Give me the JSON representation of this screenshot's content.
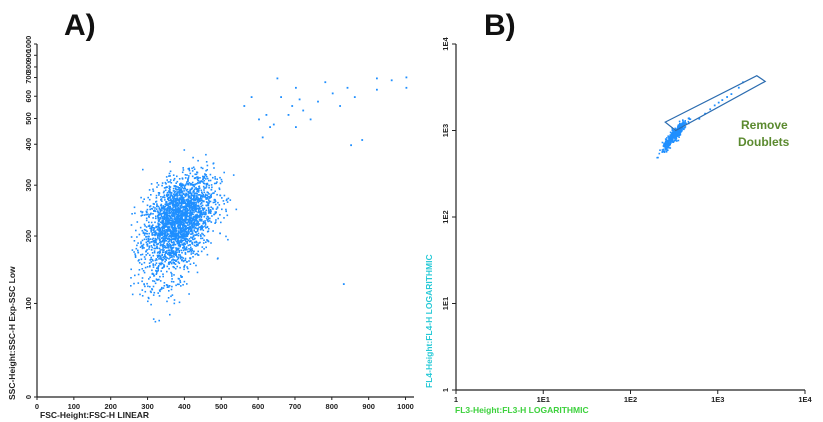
{
  "chart_data": [
    {
      "type": "scatter",
      "panel_label": "A)",
      "xlabel": "FSC-Height:FSC-H LINEAR",
      "ylabel": "SSC-Height:SSC-H Exp-SSC Low",
      "x_scale": "linear",
      "y_scale": "nonlinear",
      "xlim": [
        0,
        1023
      ],
      "ylim": [
        0,
        1023
      ],
      "x_ticks": [
        {
          "value": 0,
          "label": "0"
        },
        {
          "value": 100,
          "label": "100"
        },
        {
          "value": 200,
          "label": "200"
        },
        {
          "value": 300,
          "label": "300"
        },
        {
          "value": 400,
          "label": "400"
        },
        {
          "value": 500,
          "label": "500"
        },
        {
          "value": 600,
          "label": "600"
        },
        {
          "value": 700,
          "label": "700"
        },
        {
          "value": 800,
          "label": "800"
        },
        {
          "value": 900,
          "label": "900"
        },
        {
          "value": 1000,
          "label": "1000"
        }
      ],
      "y_ticks": [
        {
          "label": "0",
          "frac": 0.0
        },
        {
          "label": "100",
          "frac": 0.265
        },
        {
          "label": "200",
          "frac": 0.456
        },
        {
          "label": "300",
          "frac": 0.6
        },
        {
          "label": "400",
          "frac": 0.716
        },
        {
          "label": "500",
          "frac": 0.789
        },
        {
          "label": "600",
          "frac": 0.852
        },
        {
          "label": "700",
          "frac": 0.905
        },
        {
          "label": "800",
          "frac": 0.935
        },
        {
          "label": "900",
          "frac": 0.968
        },
        {
          "label": "1000",
          "frac": 1.0
        }
      ],
      "series": [
        {
          "color": "#1f8fff",
          "population": {
            "center_x": 380,
            "center_y": 230,
            "n_points": 2600
          },
          "points": [
            [
              600,
              500
            ],
            [
              620,
              520
            ],
            [
              650,
              700
            ],
            [
              660,
              600
            ],
            [
              690,
              560
            ],
            [
              700,
              650
            ],
            [
              720,
              540
            ],
            [
              760,
              580
            ],
            [
              780,
              680
            ],
            [
              800,
              620
            ],
            [
              820,
              560
            ],
            [
              840,
              650
            ],
            [
              860,
              600
            ],
            [
              880,
              420
            ],
            [
              920,
              700
            ],
            [
              960,
              690
            ],
            [
              1000,
              710
            ],
            [
              1000,
              650
            ],
            [
              640,
              480
            ],
            [
              700,
              470
            ],
            [
              740,
              500
            ],
            [
              850,
              400
            ],
            [
              830,
              130
            ],
            [
              560,
              560
            ],
            [
              580,
              600
            ],
            [
              610,
              430
            ],
            [
              630,
              470
            ],
            [
              680,
              520
            ],
            [
              710,
              590
            ],
            [
              920,
              640
            ]
          ]
        }
      ]
    },
    {
      "type": "scatter",
      "panel_label": "B)",
      "xlabel": "FL3-Height:FL3-H LOGARITHMIC",
      "ylabel": "FL4-Height:FL4-H LOGARITHMIC",
      "x_scale": "log",
      "y_scale": "log",
      "xlim": [
        1,
        10000
      ],
      "ylim": [
        1,
        10000
      ],
      "x_ticks": [
        {
          "value": 1,
          "label": "1"
        },
        {
          "value": 10,
          "label": "1E1"
        },
        {
          "value": 100,
          "label": "1E2"
        },
        {
          "value": 1000,
          "label": "1E3"
        },
        {
          "value": 10000,
          "label": "1E4"
        }
      ],
      "y_ticks": [
        {
          "value": 1,
          "label": "1"
        },
        {
          "value": 10,
          "label": "1E1"
        },
        {
          "value": 100,
          "label": "1E2"
        },
        {
          "value": 1000,
          "label": "1E3"
        },
        {
          "value": 10000,
          "label": "1E4"
        }
      ],
      "series": [
        {
          "color": "#1f8fff",
          "population": {
            "center_x": 300,
            "center_y": 900,
            "n_points": 420
          },
          "points": [
            [
              600,
              1400
            ],
            [
              700,
              1600
            ],
            [
              800,
              1800
            ],
            [
              900,
              2000
            ],
            [
              1000,
              2150
            ],
            [
              1100,
              2300
            ],
            [
              1250,
              2500
            ],
            [
              1400,
              2700
            ],
            [
              1700,
              3200
            ],
            [
              1900,
              3700
            ]
          ]
        }
      ],
      "gate": {
        "label_lines": [
          "Remove",
          "Doublets"
        ],
        "polygon": [
          [
            250,
            1250
          ],
          [
            2800,
            4300
          ],
          [
            3500,
            3700
          ],
          [
            330,
            1000
          ]
        ],
        "label_color": "#5b8a2f",
        "outline_color": "#2b6cb0"
      }
    }
  ]
}
